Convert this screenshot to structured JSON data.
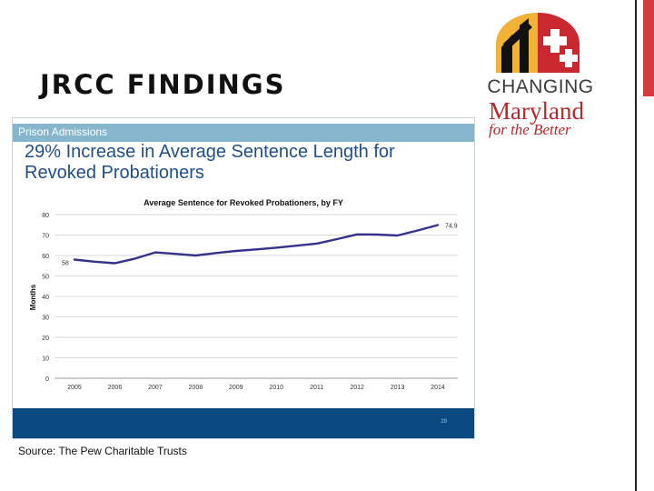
{
  "slide": {
    "title": "JRCC FINDINGS",
    "source": "Source: The Pew Charitable Trusts"
  },
  "logo": {
    "line1": "CHANGING",
    "line2": "Maryland",
    "line3": "for the Better"
  },
  "panel": {
    "header": "Prison Admissions",
    "headline": "29% Increase in Average Sentence Length for Revoked Probationers",
    "page_number": "29"
  },
  "colors": {
    "line": "#33338a",
    "headline": "#1f4f8b",
    "header_band": "#85b6cc",
    "footer_band": "#0a4981",
    "accent_red": "#d63a3e"
  },
  "chart_data": {
    "type": "line",
    "title": "Average Sentence for Revoked Probationers, by FY",
    "xlabel": "",
    "ylabel": "Months",
    "ylim": [
      0,
      80
    ],
    "yticks": [
      0,
      10,
      20,
      30,
      40,
      50,
      60,
      70,
      80
    ],
    "grid": true,
    "x": [
      "2005",
      "2006",
      "2007",
      "2008",
      "2009",
      "2010",
      "2011",
      "2012",
      "2013",
      "2014"
    ],
    "points": [
      {
        "x": 2005.0,
        "y": 58.0
      },
      {
        "x": 2005.5,
        "y": 57.0
      },
      {
        "x": 2006.0,
        "y": 56.2
      },
      {
        "x": 2006.5,
        "y": 58.5
      },
      {
        "x": 2007.0,
        "y": 61.5
      },
      {
        "x": 2007.5,
        "y": 60.8
      },
      {
        "x": 2008.0,
        "y": 60.0
      },
      {
        "x": 2008.5,
        "y": 61.2
      },
      {
        "x": 2009.0,
        "y": 62.2
      },
      {
        "x": 2009.5,
        "y": 63.0
      },
      {
        "x": 2010.0,
        "y": 63.8
      },
      {
        "x": 2010.5,
        "y": 64.8
      },
      {
        "x": 2011.0,
        "y": 65.8
      },
      {
        "x": 2011.5,
        "y": 68.0
      },
      {
        "x": 2012.0,
        "y": 70.3
      },
      {
        "x": 2012.5,
        "y": 70.2
      },
      {
        "x": 2013.0,
        "y": 69.8
      },
      {
        "x": 2013.5,
        "y": 72.2
      },
      {
        "x": 2014.0,
        "y": 74.9
      }
    ],
    "labels": [
      {
        "text": "58",
        "x": 2005.0,
        "y": 58.0
      },
      {
        "text": "74.9",
        "x": 2014.0,
        "y": 74.9
      }
    ]
  }
}
